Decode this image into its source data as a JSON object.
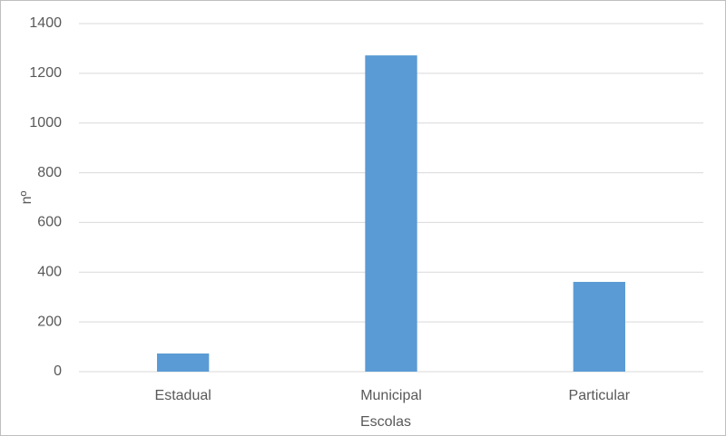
{
  "chart_data": {
    "type": "bar",
    "x_label": "Escolas",
    "y_label": "nº",
    "categories": [
      "Estadual",
      "Municipal",
      "Particular"
    ],
    "values": [
      73,
      1272,
      361
    ],
    "color": "#5b9bd5",
    "ylim": [
      0,
      1400
    ],
    "yticks": [
      0,
      200,
      400,
      600,
      800,
      1000,
      1200,
      1400
    ],
    "grid": true
  }
}
